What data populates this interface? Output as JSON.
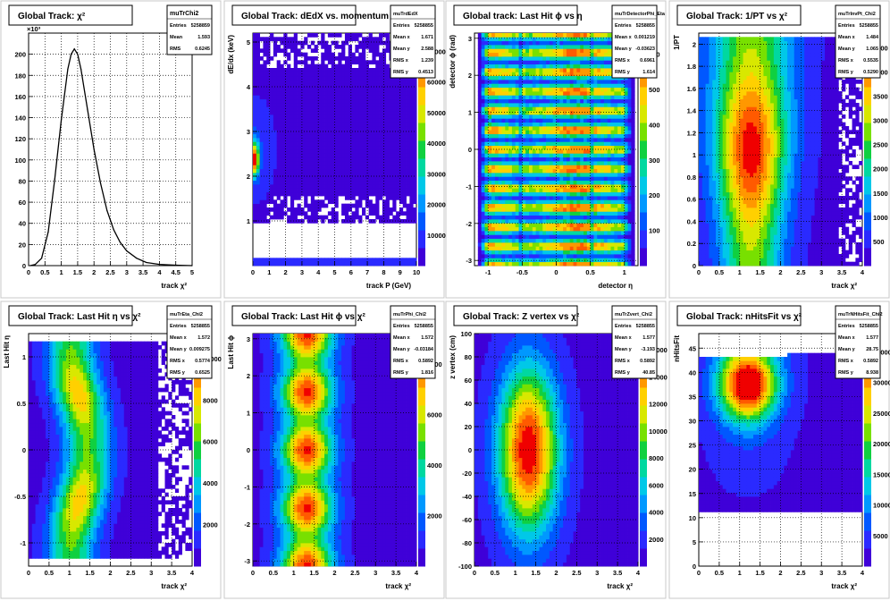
{
  "palette": [
    "#3f00d8",
    "#2a2aff",
    "#0058ff",
    "#0098ff",
    "#00c8e8",
    "#00d8a0",
    "#10d040",
    "#78e000",
    "#d8e800",
    "#ffd000",
    "#ff9800",
    "#ff5a00",
    "#f00000"
  ],
  "chart_data": [
    {
      "type": "line",
      "title": "Global Track: χ²",
      "xlabel": "track  χ²",
      "ylabel": "",
      "multiplier": "×10³",
      "xlim": [
        0,
        5
      ],
      "ylim": [
        0,
        220
      ],
      "xticks": [
        "0",
        "0.5",
        "1",
        "1.5",
        "2",
        "2.5",
        "3",
        "3.5",
        "4",
        "4.5",
        "5"
      ],
      "yticks": [
        "0",
        "20",
        "40",
        "60",
        "80",
        "100",
        "120",
        "140",
        "160",
        "180",
        "200"
      ],
      "stats": {
        "name": "muTrChi2",
        "rows": [
          [
            "Entries",
            "5258859"
          ],
          [
            "Mean",
            "1.593"
          ],
          [
            "RMS",
            "0.6245"
          ]
        ]
      },
      "series": [
        {
          "x": [
            0.05,
            0.2,
            0.4,
            0.6,
            0.8,
            1.0,
            1.2,
            1.3,
            1.4,
            1.5,
            1.6,
            1.8,
            2.0,
            2.2,
            2.4,
            2.6,
            2.8,
            3.0,
            3.3,
            3.6,
            4.0,
            4.5,
            5.0
          ],
          "y": [
            0,
            1,
            7,
            32,
            82,
            138,
            186,
            200,
            205,
            200,
            186,
            148,
            110,
            78,
            52,
            34,
            22,
            14,
            7,
            3,
            1.2,
            0.4,
            0
          ]
        }
      ]
    },
    {
      "type": "heatmap",
      "blob": "dedx",
      "title": "Global Track: dEdX vs. momentum",
      "xlabel": "track P (GeV)",
      "ylabel": "dE/dx (keV)",
      "xlim": [
        0,
        10
      ],
      "ylim": [
        0,
        5.2
      ],
      "xticks": [
        "0",
        "1",
        "2",
        "3",
        "4",
        "5",
        "6",
        "7",
        "8",
        "9",
        "10"
      ],
      "yticks": [
        "1",
        "2",
        "3",
        "4",
        "5"
      ],
      "ztick_labels": [
        "10000",
        "20000",
        "30000",
        "40000",
        "50000",
        "60000",
        "70000"
      ],
      "stats": {
        "name": "muTrdEdX",
        "rows": [
          [
            "Entries",
            "5258855"
          ],
          [
            "Mean x",
            "1.671"
          ],
          [
            "Mean y",
            "2.588"
          ],
          [
            "RMS x",
            "1.239"
          ],
          [
            "RMS y",
            "0.4513"
          ]
        ]
      }
    },
    {
      "type": "heatmap",
      "blob": "stripes",
      "title": "Global track: Last Hit ϕ vs η",
      "xlabel": "detector  η",
      "ylabel": "detector  ϕ (rad)",
      "xlim": [
        -1.2,
        1.2
      ],
      "ylim": [
        -3.14,
        3.14
      ],
      "xticks": [
        "-1",
        "-0.5",
        "0",
        "0.5",
        "1"
      ],
      "yticks": [
        "-3",
        "-2",
        "-1",
        "0",
        "1",
        "2",
        "3"
      ],
      "ztick_labels": [
        "100",
        "200",
        "300",
        "400",
        "500",
        "600"
      ],
      "stats": {
        "name": "muTrDetectorPhi_Eta",
        "rows": [
          [
            "Entries",
            "5258855"
          ],
          [
            "Mean x",
            "0.001219"
          ],
          [
            "Mean y",
            "-0.03623"
          ],
          [
            "RMS x",
            "0.6961"
          ],
          [
            "RMS y",
            "1.614"
          ]
        ]
      }
    },
    {
      "type": "heatmap",
      "blob": "invpt",
      "title": "Global Track: 1/PT vs χ²",
      "xlabel": "track  χ²",
      "ylabel": "1/PT",
      "xlim": [
        0,
        4
      ],
      "ylim": [
        0,
        2.1
      ],
      "xticks": [
        "0",
        "0.5",
        "1",
        "1.5",
        "2",
        "2.5",
        "3",
        "3.5",
        "4"
      ],
      "yticks": [
        "0",
        "0.2",
        "0.4",
        "0.6",
        "0.8",
        "1",
        "1.2",
        "1.4",
        "1.6",
        "1.8",
        "2"
      ],
      "ztick_labels": [
        "500",
        "1000",
        "1500",
        "2000",
        "2500",
        "3000",
        "3500",
        "4000",
        "4500"
      ],
      "stats": {
        "name": "muTrInvPt_Chi2",
        "rows": [
          [
            "Entries",
            "5258855"
          ],
          [
            "Mean x",
            "1.484"
          ],
          [
            "Mean y",
            "1.065"
          ],
          [
            "RMS x",
            "0.5535"
          ],
          [
            "RMS y",
            "0.5290"
          ]
        ]
      }
    },
    {
      "type": "heatmap",
      "blob": "etachi",
      "title": "Global Track: Last Hit η vs χ²",
      "xlabel": "track  χ²",
      "ylabel": "Last Hit  η",
      "xlim": [
        0,
        4
      ],
      "ylim": [
        -1.25,
        1.25
      ],
      "xticks": [
        "0",
        "0.5",
        "1",
        "1.5",
        "2",
        "2.5",
        "3",
        "3.5",
        "4"
      ],
      "yticks": [
        "-1",
        "-0.5",
        "0",
        "0.5",
        "1"
      ],
      "ztick_labels": [
        "2000",
        "4000",
        "6000",
        "8000",
        "10000"
      ],
      "stats": {
        "name": "muTrEta_Chi2",
        "rows": [
          [
            "Entries",
            "5258855"
          ],
          [
            "Mean x",
            "1.572"
          ],
          [
            "Mean y",
            "0.009275"
          ],
          [
            "RMS x",
            "0.5774"
          ],
          [
            "RMS y",
            "0.6525"
          ]
        ]
      }
    },
    {
      "type": "heatmap",
      "blob": "phichi",
      "title": "Global Track: Last Hit ϕ vs χ²",
      "xlabel": "track  χ²",
      "ylabel": "Last Hit  ϕ",
      "xlim": [
        0,
        4
      ],
      "ylim": [
        -3.14,
        3.14
      ],
      "xticks": [
        "0",
        "0.5",
        "1",
        "1.5",
        "2",
        "2.5",
        "3",
        "3.5",
        "4"
      ],
      "yticks": [
        "-3",
        "-2",
        "-1",
        "0",
        "1",
        "2",
        "3"
      ],
      "ztick_labels": [
        "2000",
        "4000",
        "6000",
        "8000"
      ],
      "stats": {
        "name": "muTrPhi_Chi2",
        "rows": [
          [
            "Entries",
            "5258855"
          ],
          [
            "Mean x",
            "1.572"
          ],
          [
            "Mean y",
            "-0.03184"
          ],
          [
            "RMS x",
            "0.5892"
          ],
          [
            "RMS y",
            "1.816"
          ]
        ]
      }
    },
    {
      "type": "heatmap",
      "blob": "zvert",
      "title": "Global Track: Z vertex vs χ²",
      "xlabel": "track  χ²",
      "ylabel": "z vertex (cm)",
      "xlim": [
        0,
        4
      ],
      "ylim": [
        -100,
        100
      ],
      "xticks": [
        "0",
        "0.5",
        "1",
        "1.5",
        "2",
        "2.5",
        "3",
        "3.5",
        "4"
      ],
      "yticks": [
        "-100",
        "-80",
        "-60",
        "-40",
        "-20",
        "0",
        "20",
        "40",
        "60",
        "80",
        "100"
      ],
      "ztick_labels": [
        "2000",
        "4000",
        "6000",
        "8000",
        "10000",
        "12000",
        "14000",
        "16000"
      ],
      "stats": {
        "name": "muTrZvert_Chi2",
        "rows": [
          [
            "Entries",
            "5258855"
          ],
          [
            "Mean x",
            "1.577"
          ],
          [
            "Mean y",
            "-3.193"
          ],
          [
            "RMS x",
            "0.5892"
          ],
          [
            "RMS y",
            "40.85"
          ]
        ]
      }
    },
    {
      "type": "heatmap",
      "blob": "nhits",
      "title": "Global Track: nHitsFit vs χ²",
      "xlabel": "track  χ²",
      "ylabel": "nHitsFit",
      "xlim": [
        0,
        4
      ],
      "ylim": [
        0,
        48
      ],
      "xticks": [
        "0",
        "0.5",
        "1",
        "1.5",
        "2",
        "2.5",
        "3",
        "3.5",
        "4"
      ],
      "yticks": [
        "0",
        "5",
        "10",
        "15",
        "20",
        "25",
        "30",
        "35",
        "40",
        "45"
      ],
      "ztick_labels": [
        "5000",
        "10000",
        "15000",
        "20000",
        "25000",
        "30000",
        "35000"
      ],
      "stats": {
        "name": "muTrNHitsFit_Chi2",
        "rows": [
          [
            "Entries",
            "5258855"
          ],
          [
            "Mean x",
            "1.577"
          ],
          [
            "Mean y",
            "28.75"
          ],
          [
            "RMS x",
            "0.5892"
          ],
          [
            "RMS y",
            "8.938"
          ]
        ]
      }
    }
  ]
}
